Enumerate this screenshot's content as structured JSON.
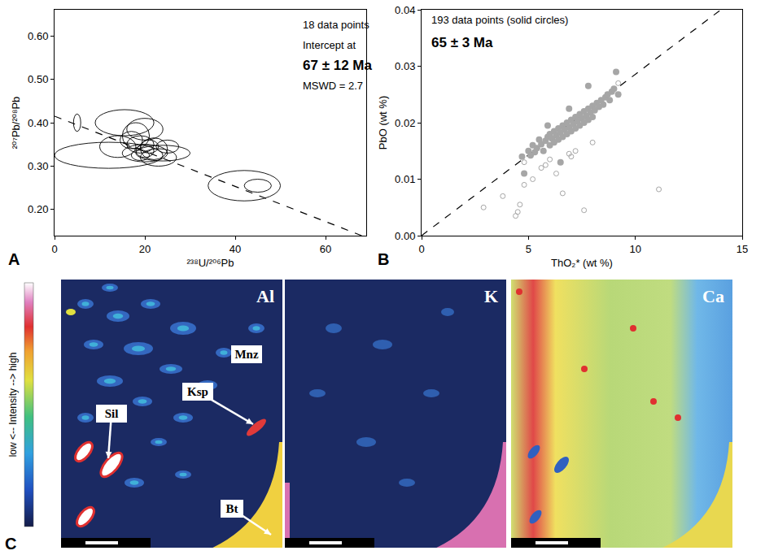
{
  "chart_data": [
    {
      "type": "scatter",
      "label": "A",
      "xlabel": "²³⁸U/²⁰⁶Pb",
      "ylabel": "²⁰⁷Pb/²⁰⁸Pb",
      "annotations": [
        "18 data points",
        "Intercept at",
        "67 ± 12 Ma",
        "MSWD = 2.7"
      ],
      "xlim": [
        0,
        69
      ],
      "ylim": [
        0.14,
        0.66
      ],
      "xticks": [
        0,
        20,
        40,
        60
      ],
      "yticks": [
        {
          "value": 0.2,
          "label": "0.20"
        },
        {
          "value": 0.3,
          "label": "0.30"
        },
        {
          "value": 0.4,
          "label": "0.40"
        },
        {
          "value": 0.5,
          "label": "0.50"
        },
        {
          "value": 0.6,
          "label": "0.60"
        }
      ],
      "marker": "ellipse",
      "ellipses": {
        "x": [
          5,
          15.5,
          12,
          20,
          18,
          14,
          19,
          20,
          22,
          20,
          23,
          24,
          42,
          45,
          17,
          21,
          25,
          19
        ],
        "y": [
          0.4,
          0.4,
          0.325,
          0.385,
          0.37,
          0.345,
          0.35,
          0.335,
          0.34,
          0.33,
          0.32,
          0.33,
          0.255,
          0.255,
          0.36,
          0.345,
          0.345,
          0.325
        ],
        "x_error": [
          0.8,
          6.5,
          12,
          4,
          3,
          4,
          3,
          2,
          3,
          5,
          4,
          6,
          8,
          3,
          2.5,
          2,
          2.5,
          2
        ],
        "y_error": [
          0.02,
          0.03,
          0.03,
          0.025,
          0.03,
          0.025,
          0.02,
          0.015,
          0.025,
          0.02,
          0.02,
          0.018,
          0.035,
          0.015,
          0.02,
          0.015,
          0.015,
          0.012
        ]
      },
      "fit_line": {
        "x": [
          0,
          68
        ],
        "y": [
          0.415,
          0.14
        ],
        "line_style": "dashed",
        "color": "#000000"
      }
    },
    {
      "type": "scatter",
      "label": "B",
      "xlabel": "ThO₂* (wt %)",
      "ylabel": "PbO (wt %)",
      "annotations": [
        "193 data points (solid circles)",
        "65 ± 3 Ma"
      ],
      "xlim": [
        0,
        15
      ],
      "ylim": [
        0,
        0.04
      ],
      "xticks": [
        0,
        5,
        10,
        15
      ],
      "yticks": [
        {
          "value": 0,
          "label": "0.00"
        },
        {
          "value": 0.01,
          "label": "0.01"
        },
        {
          "value": 0.02,
          "label": "0.02"
        },
        {
          "value": 0.03,
          "label": "0.03"
        },
        {
          "value": 0.04,
          "label": "0.04"
        }
      ],
      "series": [
        {
          "marker": "circle",
          "color": "#a6a6a6",
          "x": [
            4.7,
            4.8,
            5.0,
            5.1,
            5.2,
            5.3,
            5.4,
            5.5,
            5.6,
            5.7,
            5.8,
            5.9,
            6.0,
            6.0,
            6.1,
            6.2,
            6.2,
            6.3,
            6.4,
            6.4,
            6.5,
            6.6,
            6.6,
            6.7,
            6.8,
            6.8,
            6.9,
            7.0,
            7.0,
            7.1,
            7.2,
            7.2,
            7.3,
            7.4,
            7.4,
            7.5,
            7.6,
            7.6,
            7.7,
            7.8,
            7.8,
            7.9,
            8.0,
            8.0,
            8.1,
            8.2,
            8.3,
            8.4,
            8.5,
            8.6,
            8.7,
            8.8,
            8.9,
            9.0,
            9.1,
            9.2,
            6.5,
            7.8,
            5.9,
            6.9
          ],
          "values": [
            0.014,
            0.011,
            0.015,
            0.0142,
            0.016,
            0.0148,
            0.0155,
            0.017,
            0.0162,
            0.015,
            0.0168,
            0.0175,
            0.016,
            0.018,
            0.0172,
            0.0185,
            0.0165,
            0.0178,
            0.019,
            0.017,
            0.0182,
            0.0195,
            0.0175,
            0.0188,
            0.02,
            0.018,
            0.0192,
            0.0205,
            0.0185,
            0.0198,
            0.021,
            0.019,
            0.0202,
            0.0215,
            0.0195,
            0.0208,
            0.022,
            0.02,
            0.0212,
            0.0225,
            0.0205,
            0.0218,
            0.023,
            0.021,
            0.0222,
            0.0235,
            0.0228,
            0.024,
            0.0232,
            0.0245,
            0.025,
            0.024,
            0.0255,
            0.026,
            0.029,
            0.025,
            0.013,
            0.0265,
            0.0195,
            0.0225
          ]
        },
        {
          "marker": "circle-open",
          "color": "#a6a6a6",
          "x": [
            2.9,
            3.8,
            4.4,
            4.5,
            4.6,
            4.8,
            5.2,
            5.6,
            6.0,
            6.6,
            6.9,
            7.2,
            7.6,
            8.0,
            11.1,
            5.8,
            6.3,
            9.2,
            4.8,
            7.0
          ],
          "values": [
            0.005,
            0.007,
            0.0035,
            0.0042,
            0.0055,
            0.009,
            0.01,
            0.012,
            0.0135,
            0.0075,
            0.0145,
            0.015,
            0.0045,
            0.0165,
            0.0082,
            0.0125,
            0.011,
            0.027,
            0.013,
            0.014
          ]
        }
      ],
      "fit_line": {
        "x": [
          0,
          14
        ],
        "y": [
          0,
          0.04
        ],
        "line_style": "dashed",
        "color": "#000000"
      }
    }
  ],
  "panel_c": {
    "label": "C",
    "intensity_label": "low <-- Intensity --> high",
    "maps": [
      "Al",
      "K",
      "Ca"
    ],
    "minerals": [
      "Mnz",
      "Ksp",
      "Sil",
      "Bt"
    ]
  }
}
